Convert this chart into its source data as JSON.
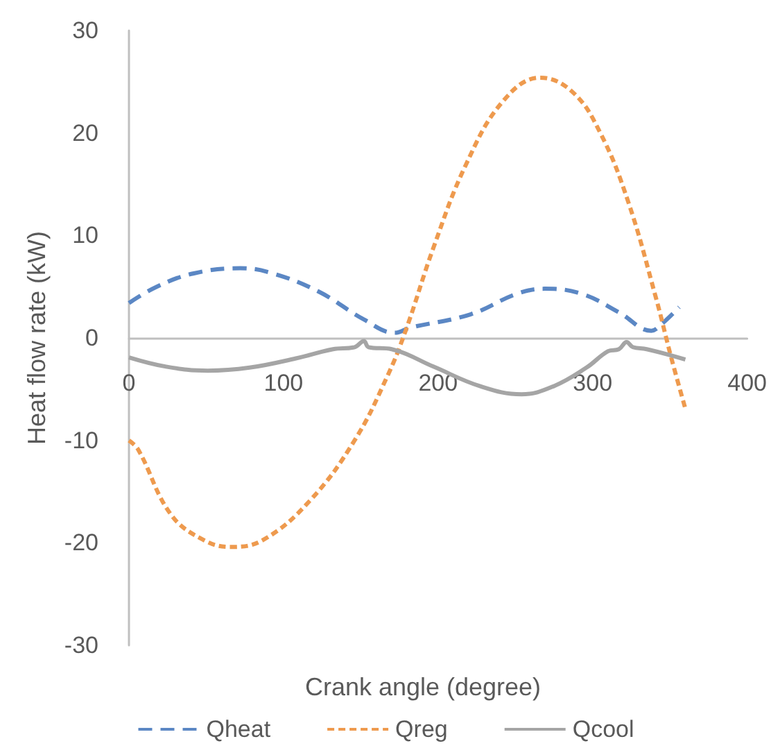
{
  "chart_data": {
    "type": "line",
    "xlabel": "Crank angle (degree)",
    "ylabel": "Heat flow rate (kW)",
    "xlim": [
      0,
      400
    ],
    "xticks": [
      0,
      100,
      200,
      300,
      400
    ],
    "ylim": [
      -30,
      30
    ],
    "yticks": [
      -30,
      -20,
      -10,
      0,
      10,
      20,
      30
    ],
    "grid": false,
    "legend": "bottom",
    "marker": "none",
    "series": [
      {
        "name": "Qheat",
        "color": "#5b87c4",
        "line_style": "dashed",
        "x": [
          0,
          18,
          42,
          72,
          93,
          123,
          152,
          172,
          182,
          221,
          251,
          269,
          293,
          317,
          338,
          345,
          356
        ],
        "values": [
          3.4,
          5.0,
          6.3,
          6.8,
          6.3,
          4.5,
          1.8,
          0.5,
          1.0,
          2.3,
          4.3,
          4.8,
          4.3,
          2.5,
          0.7,
          1.4,
          3.0
        ]
      },
      {
        "name": "Qreg",
        "color": "#ee9a4e",
        "line_style": "dotted",
        "x": [
          0,
          6,
          27,
          48,
          66,
          87,
          117,
          146,
          167,
          179,
          197,
          218,
          242,
          266,
          287,
          305,
          323,
          341,
          351,
          360
        ],
        "values": [
          -10.0,
          -10.9,
          -17.2,
          -19.7,
          -20.4,
          -19.7,
          -15.9,
          -10.0,
          -3.8,
          0.7,
          8.8,
          16.9,
          23.1,
          25.4,
          24.0,
          20.0,
          13.3,
          3.9,
          -2.0,
          -6.9
        ]
      },
      {
        "name": "Qcool",
        "color": "#a5a5a5",
        "line_style": "solid",
        "x": [
          0,
          24,
          51,
          78,
          108,
          132,
          146,
          152,
          155,
          170,
          197,
          227,
          254,
          275,
          296,
          310,
          317,
          322,
          326,
          335,
          360
        ],
        "values": [
          -1.9,
          -2.8,
          -3.2,
          -2.9,
          -2.0,
          -1.1,
          -0.9,
          -0.3,
          -0.9,
          -1.1,
          -2.8,
          -4.7,
          -5.5,
          -4.7,
          -2.9,
          -1.3,
          -1.1,
          -0.4,
          -0.9,
          -1.1,
          -2.1
        ]
      }
    ]
  }
}
